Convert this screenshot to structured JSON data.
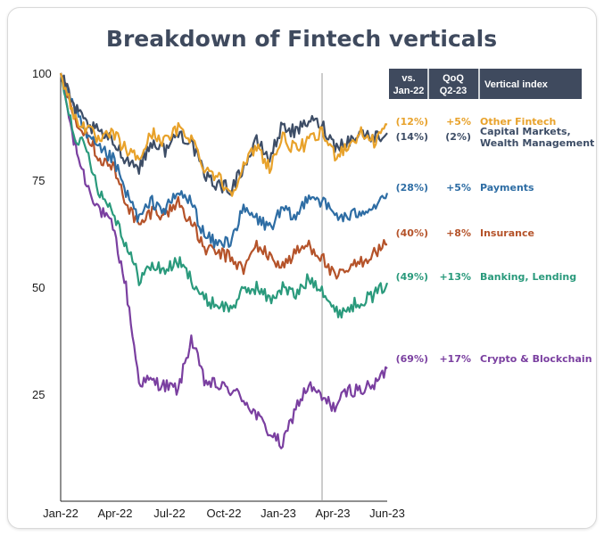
{
  "chart_data": {
    "type": "line",
    "title": "Breakdown of Fintech verticals",
    "xlabel": "",
    "ylabel": "",
    "x_ticks": [
      "Jan-22",
      "Apr-22",
      "Jul-22",
      "Oct-22",
      "Jan-23",
      "Apr-23",
      "Jun-23"
    ],
    "y_ticks": [
      "100",
      "75",
      "50",
      "25"
    ],
    "ylim": [
      0,
      100
    ],
    "grid": false,
    "reference_line": "Apr-23",
    "table_headers": [
      "vs. Jan-22",
      "QoQ Q2-23",
      "Vertical index"
    ],
    "series": [
      {
        "name": "Other Fintech",
        "color": "#e8a22b",
        "vs_jan22": "(12%)",
        "qoq": "+5%",
        "label_y": 86,
        "values": [
          100,
          90,
          87,
          84,
          86,
          82,
          80,
          86,
          84,
          87,
          85,
          78,
          76,
          72,
          78,
          83,
          78,
          85,
          82,
          84,
          86,
          81,
          83,
          86,
          84,
          88
        ]
      },
      {
        "name": "Capital Markets, Wealth Management",
        "color": "#3d4d66",
        "vs_jan22": "(14%)",
        "qoq": "(2%)",
        "label_y": 86,
        "values": [
          100,
          92,
          88,
          86,
          84,
          80,
          78,
          84,
          82,
          86,
          84,
          76,
          74,
          73,
          78,
          84,
          80,
          88,
          86,
          89,
          88,
          83,
          84,
          86,
          85,
          86
        ]
      },
      {
        "name": "Payments",
        "color": "#2e6da4",
        "vs_jan22": "(28%)",
        "qoq": "+5%",
        "label_y": 72,
        "values": [
          100,
          92,
          85,
          82,
          80,
          72,
          66,
          70,
          68,
          72,
          70,
          62,
          60,
          61,
          68,
          66,
          64,
          68,
          66,
          72,
          70,
          67,
          66,
          68,
          69,
          72
        ]
      },
      {
        "name": "Insurance",
        "color": "#b5532a",
        "vs_jan22": "(40%)",
        "qoq": "+8%",
        "label_y": 60,
        "values": [
          100,
          90,
          86,
          80,
          78,
          70,
          64,
          68,
          67,
          70,
          65,
          59,
          58,
          57,
          54,
          60,
          57,
          55,
          58,
          60,
          57,
          52,
          54,
          56,
          58,
          60
        ]
      },
      {
        "name": "Banking, Lending",
        "color": "#2a9a7c",
        "vs_jan22": "(49%)",
        "qoq": "+13%",
        "label_y": 51,
        "values": [
          100,
          86,
          82,
          72,
          68,
          60,
          52,
          55,
          54,
          56,
          52,
          47,
          46,
          45,
          49,
          50,
          47,
          50,
          48,
          52,
          50,
          44,
          45,
          47,
          48,
          51
        ]
      },
      {
        "name": "Crypto & Blockchain",
        "color": "#7a3fa0",
        "vs_jan22": "(69%)",
        "qoq": "+17%",
        "label_y": 32,
        "values": [
          100,
          84,
          74,
          68,
          64,
          50,
          28,
          28,
          27,
          26,
          38,
          28,
          27,
          26,
          24,
          20,
          16,
          13,
          22,
          27,
          24,
          22,
          26,
          26,
          27,
          31
        ]
      }
    ]
  }
}
